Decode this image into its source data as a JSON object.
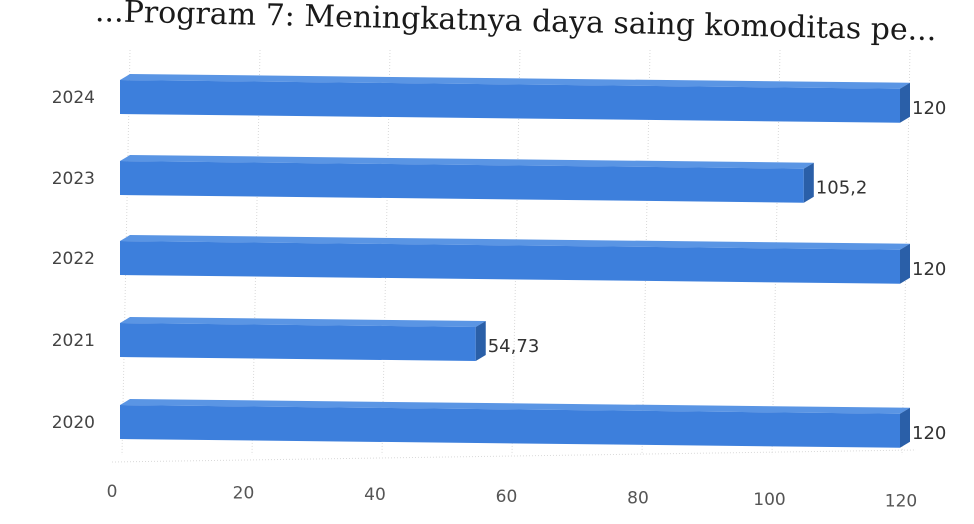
{
  "chart_data": {
    "type": "bar",
    "orientation": "horizontal",
    "style": "3d",
    "title": "...Program 7: Meningkatnya daya saing komoditas pe...",
    "categories": [
      "2020",
      "2021",
      "2022",
      "2023",
      "2024"
    ],
    "values": [
      120,
      54.73,
      120,
      105.2,
      120
    ],
    "data_labels": [
      "120",
      "54,73",
      "120",
      "105,2",
      "120"
    ],
    "xlim": [
      0,
      120
    ],
    "x_ticks": [
      "0",
      "20",
      "40",
      "60",
      "80",
      "100",
      "120"
    ],
    "grid": true,
    "legend": "none",
    "colors": {
      "bar_front": "#3d7fdc",
      "bar_top": "#5a95e4",
      "bar_side": "#2a5fa8",
      "grid": "#d9d9d9"
    }
  }
}
